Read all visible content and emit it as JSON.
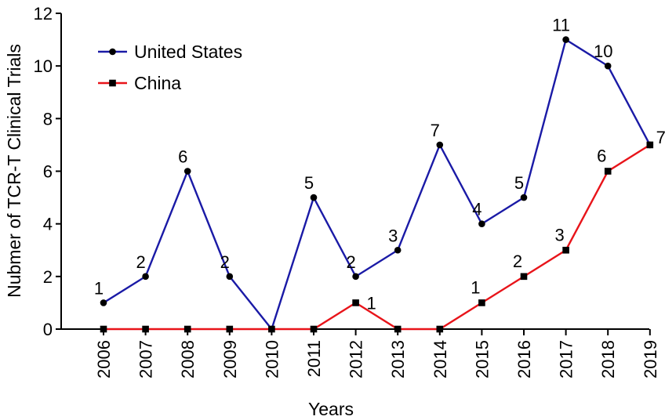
{
  "chart_data": {
    "type": "line",
    "title": "",
    "xlabel": "Years",
    "ylabel": "Nubmer of TCR-T Clinical Trials",
    "categories": [
      "2006",
      "2007",
      "2008",
      "2009",
      "2010",
      "2011",
      "2012",
      "2013",
      "2014",
      "2015",
      "2016",
      "2017",
      "2018",
      "2019"
    ],
    "ylim": [
      0,
      12
    ],
    "yticks": [
      "0",
      "2",
      "4",
      "6",
      "8",
      "10",
      "12"
    ],
    "grid": false,
    "legend_position": "top-left",
    "series": [
      {
        "name": "United States",
        "color": "#1a1aa6",
        "marker": "circle",
        "values": [
          1,
          2,
          6,
          2,
          0,
          5,
          2,
          3,
          7,
          4,
          5,
          11,
          10,
          7
        ],
        "labels": [
          "1",
          "2",
          "6",
          "2",
          "",
          "5",
          "2",
          "3",
          "7",
          "4",
          "5",
          "11",
          "10",
          "7"
        ]
      },
      {
        "name": "China",
        "color": "#e8141a",
        "marker": "square",
        "values": [
          0,
          0,
          0,
          0,
          0,
          0,
          1,
          0,
          0,
          1,
          2,
          3,
          6,
          7
        ],
        "labels": [
          "",
          "",
          "",
          "",
          "",
          "",
          "1",
          "",
          "",
          "1",
          "2",
          "3",
          "6",
          ""
        ]
      }
    ]
  }
}
